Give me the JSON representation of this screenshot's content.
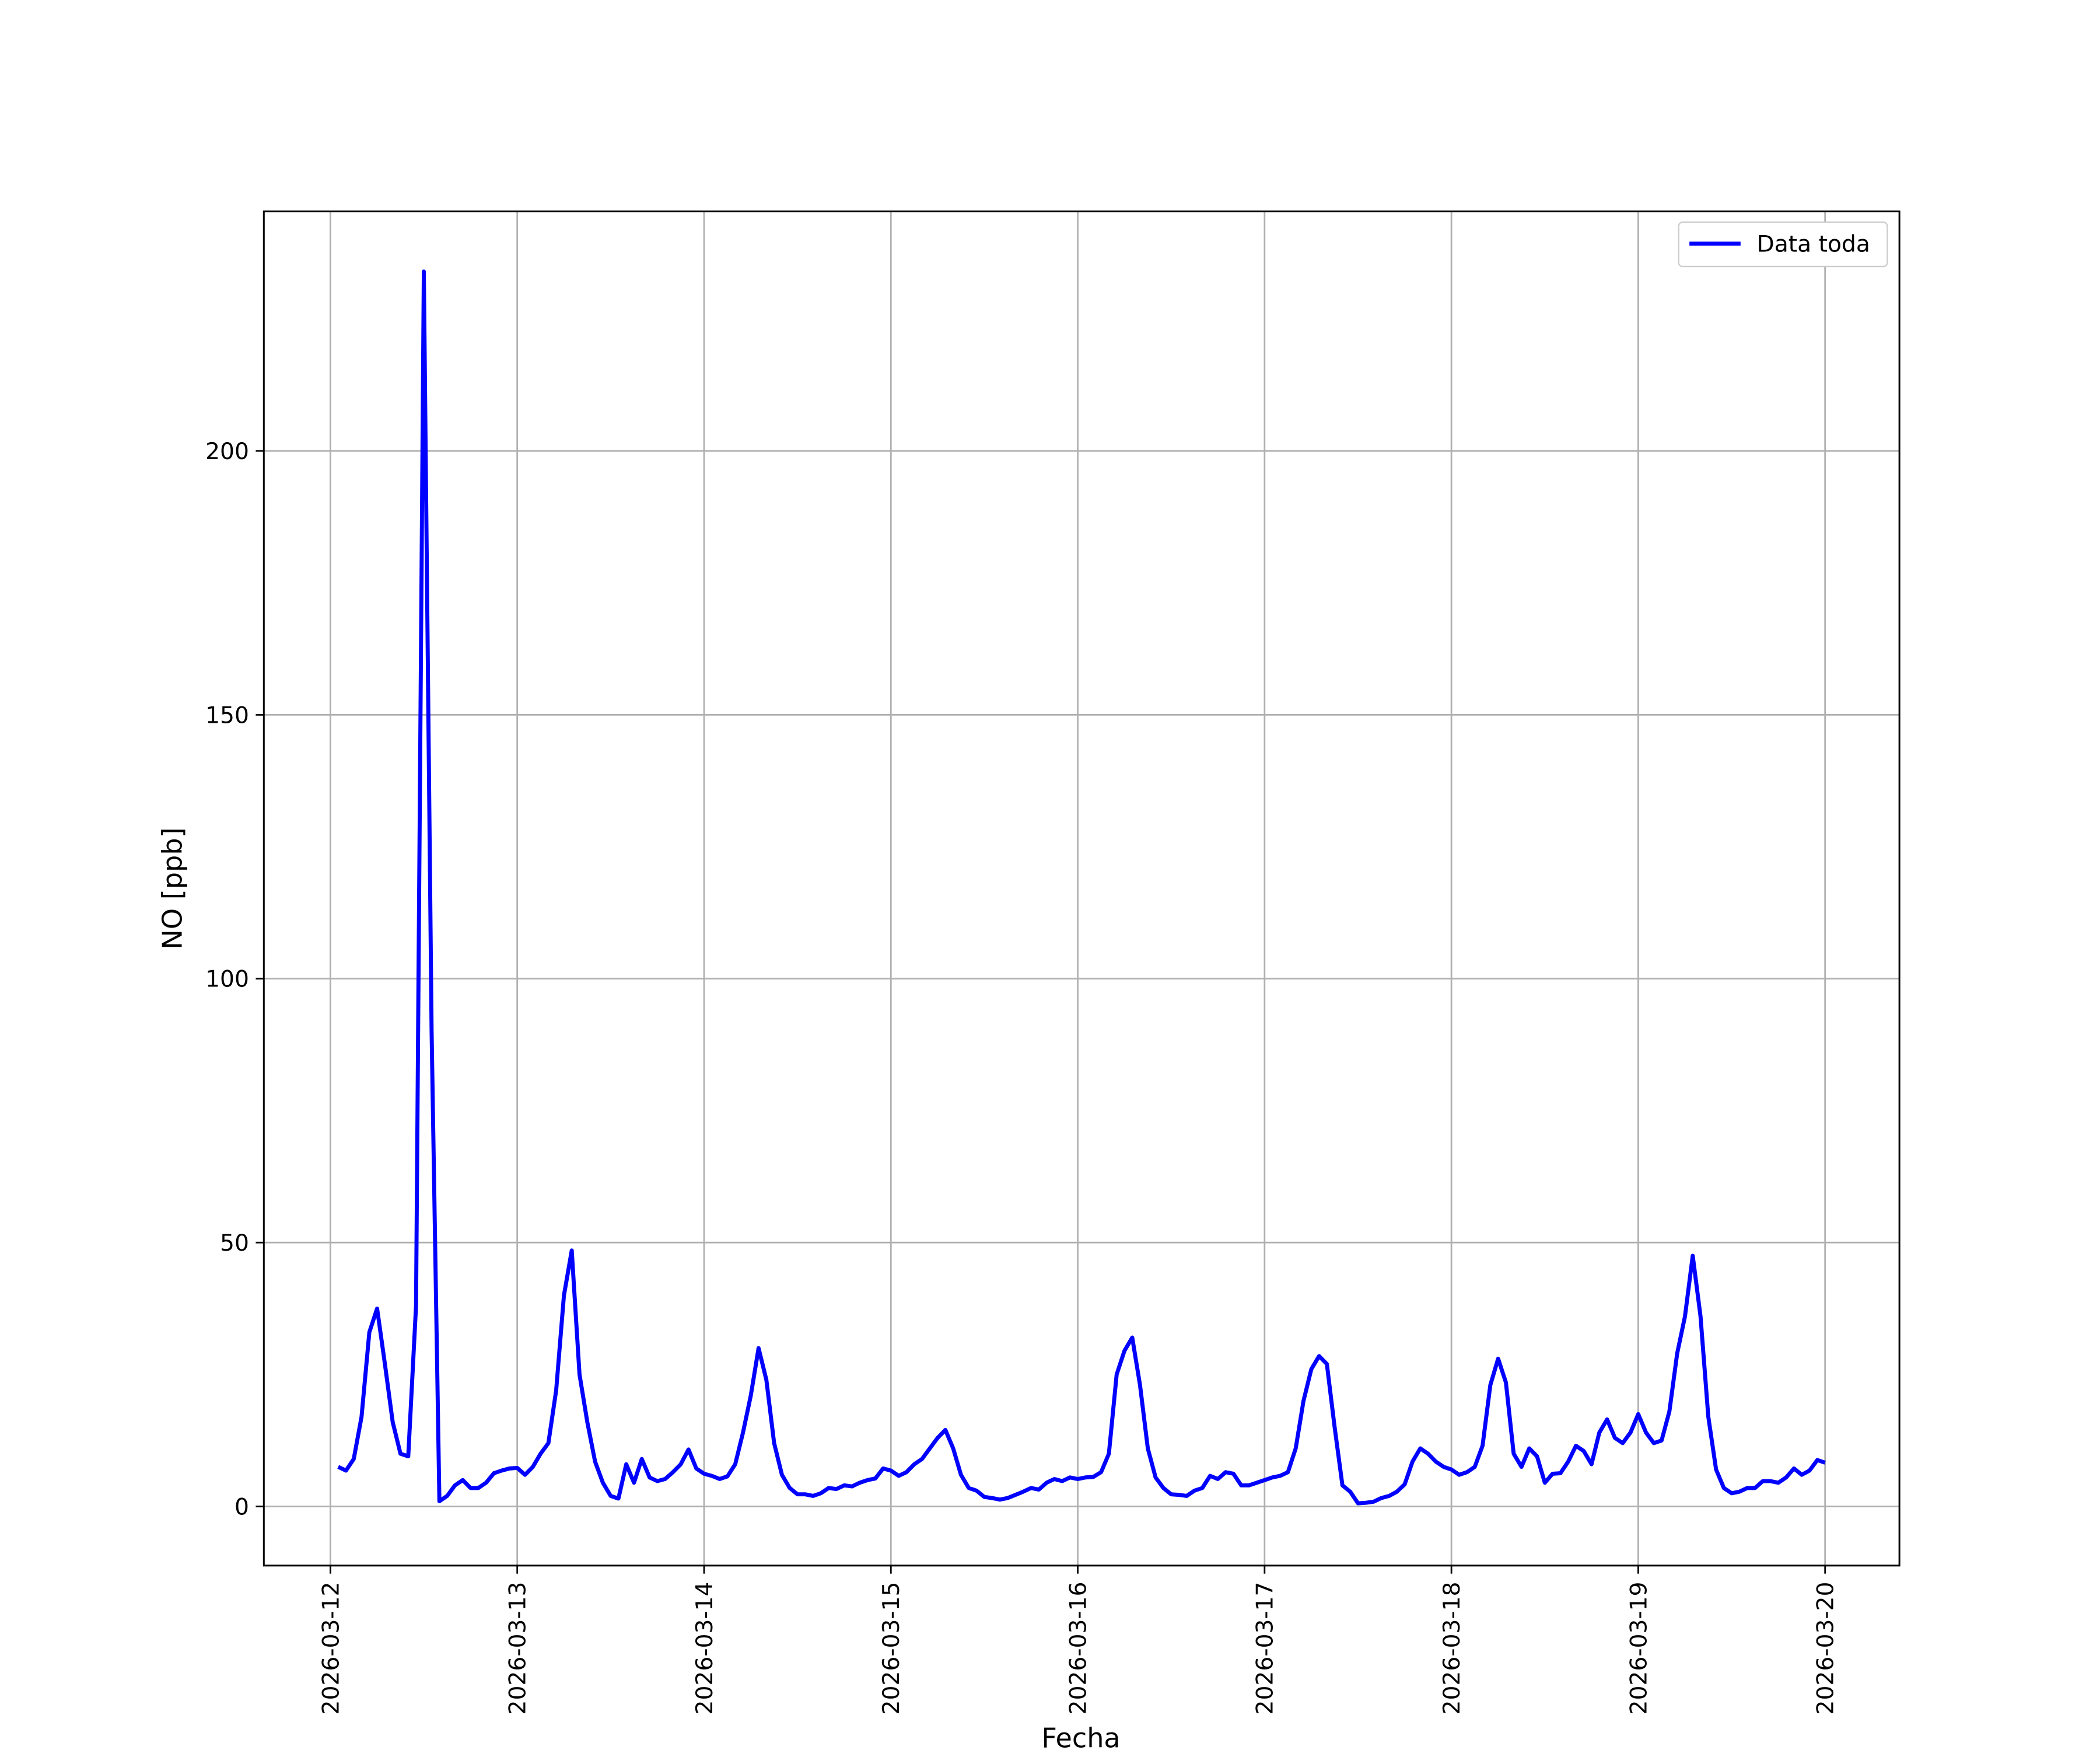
{
  "chart_data": {
    "type": "line",
    "xlabel": "Fecha",
    "ylabel": "NO [ppb]",
    "x": [
      "2026-03-12 01:00",
      "2026-03-12 02:00",
      "2026-03-12 03:00",
      "2026-03-12 04:00",
      "2026-03-12 05:00",
      "2026-03-12 06:00",
      "2026-03-12 07:00",
      "2026-03-12 08:00",
      "2026-03-12 09:00",
      "2026-03-12 10:00",
      "2026-03-12 11:00",
      "2026-03-12 12:00",
      "2026-03-12 13:00",
      "2026-03-12 14:00",
      "2026-03-12 15:00",
      "2026-03-12 16:00",
      "2026-03-12 17:00",
      "2026-03-12 18:00",
      "2026-03-12 19:00",
      "2026-03-12 20:00",
      "2026-03-12 21:00",
      "2026-03-12 22:00",
      "2026-03-12 23:00",
      "2026-03-13 00:00",
      "2026-03-13 01:00",
      "2026-03-13 02:00",
      "2026-03-13 03:00",
      "2026-03-13 04:00",
      "2026-03-13 05:00",
      "2026-03-13 06:00",
      "2026-03-13 07:00",
      "2026-03-13 08:00",
      "2026-03-13 09:00",
      "2026-03-13 10:00",
      "2026-03-13 11:00",
      "2026-03-13 12:00",
      "2026-03-13 13:00",
      "2026-03-13 14:00",
      "2026-03-13 15:00",
      "2026-03-13 16:00",
      "2026-03-13 17:00",
      "2026-03-13 18:00",
      "2026-03-13 19:00",
      "2026-03-13 20:00",
      "2026-03-13 21:00",
      "2026-03-13 22:00",
      "2026-03-13 23:00",
      "2026-03-14 00:00",
      "2026-03-14 01:00",
      "2026-03-14 02:00",
      "2026-03-14 03:00",
      "2026-03-14 04:00",
      "2026-03-14 05:00",
      "2026-03-14 06:00",
      "2026-03-14 07:00",
      "2026-03-14 08:00",
      "2026-03-14 09:00",
      "2026-03-14 10:00",
      "2026-03-14 11:00",
      "2026-03-14 12:00",
      "2026-03-14 13:00",
      "2026-03-14 14:00",
      "2026-03-14 15:00",
      "2026-03-14 16:00",
      "2026-03-14 17:00",
      "2026-03-14 18:00",
      "2026-03-14 19:00",
      "2026-03-14 20:00",
      "2026-03-14 21:00",
      "2026-03-14 22:00",
      "2026-03-14 23:00",
      "2026-03-15 00:00",
      "2026-03-15 01:00",
      "2026-03-15 02:00",
      "2026-03-15 03:00",
      "2026-03-15 04:00",
      "2026-03-15 05:00",
      "2026-03-15 06:00",
      "2026-03-15 07:00",
      "2026-03-15 08:00",
      "2026-03-15 09:00",
      "2026-03-15 10:00",
      "2026-03-15 11:00",
      "2026-03-15 12:00",
      "2026-03-15 13:00",
      "2026-03-15 14:00",
      "2026-03-15 15:00",
      "2026-03-15 16:00",
      "2026-03-15 17:00",
      "2026-03-15 18:00",
      "2026-03-15 19:00",
      "2026-03-15 20:00",
      "2026-03-15 21:00",
      "2026-03-15 22:00",
      "2026-03-15 23:00",
      "2026-03-16 00:00",
      "2026-03-16 01:00",
      "2026-03-16 02:00",
      "2026-03-16 03:00",
      "2026-03-16 04:00",
      "2026-03-16 05:00",
      "2026-03-16 06:00",
      "2026-03-16 07:00",
      "2026-03-16 08:00",
      "2026-03-16 09:00",
      "2026-03-16 10:00",
      "2026-03-16 11:00",
      "2026-03-16 12:00",
      "2026-03-16 13:00",
      "2026-03-16 14:00",
      "2026-03-16 15:00",
      "2026-03-16 16:00",
      "2026-03-16 17:00",
      "2026-03-16 18:00",
      "2026-03-16 19:00",
      "2026-03-16 20:00",
      "2026-03-16 21:00",
      "2026-03-16 22:00",
      "2026-03-16 23:00",
      "2026-03-17 00:00",
      "2026-03-17 01:00",
      "2026-03-17 02:00",
      "2026-03-17 03:00",
      "2026-03-17 04:00",
      "2026-03-17 05:00",
      "2026-03-17 06:00",
      "2026-03-17 07:00",
      "2026-03-17 08:00",
      "2026-03-17 09:00",
      "2026-03-17 10:00",
      "2026-03-17 11:00",
      "2026-03-17 12:00",
      "2026-03-17 13:00",
      "2026-03-17 14:00",
      "2026-03-17 15:00",
      "2026-03-17 16:00",
      "2026-03-17 17:00",
      "2026-03-17 18:00",
      "2026-03-17 19:00",
      "2026-03-17 20:00",
      "2026-03-17 21:00",
      "2026-03-17 22:00",
      "2026-03-17 23:00",
      "2026-03-18 00:00",
      "2026-03-18 01:00",
      "2026-03-18 02:00",
      "2026-03-18 03:00",
      "2026-03-18 04:00",
      "2026-03-18 05:00",
      "2026-03-18 06:00",
      "2026-03-18 07:00",
      "2026-03-18 08:00",
      "2026-03-18 09:00",
      "2026-03-18 10:00",
      "2026-03-18 11:00",
      "2026-03-18 12:00",
      "2026-03-18 13:00",
      "2026-03-18 14:00",
      "2026-03-18 15:00",
      "2026-03-18 16:00",
      "2026-03-18 17:00",
      "2026-03-18 18:00",
      "2026-03-18 19:00",
      "2026-03-18 20:00",
      "2026-03-18 21:00",
      "2026-03-18 22:00",
      "2026-03-18 23:00",
      "2026-03-19 00:00",
      "2026-03-19 01:00",
      "2026-03-19 02:00",
      "2026-03-19 03:00",
      "2026-03-19 04:00",
      "2026-03-19 05:00",
      "2026-03-19 06:00",
      "2026-03-19 07:00",
      "2026-03-19 08:00",
      "2026-03-19 09:00",
      "2026-03-19 10:00",
      "2026-03-19 11:00",
      "2026-03-19 12:00",
      "2026-03-19 13:00",
      "2026-03-19 14:00",
      "2026-03-19 15:00",
      "2026-03-19 16:00",
      "2026-03-19 17:00",
      "2026-03-19 18:00",
      "2026-03-19 19:00",
      "2026-03-19 20:00",
      "2026-03-19 21:00",
      "2026-03-19 22:00",
      "2026-03-19 23:00",
      "2026-03-20 00:00"
    ],
    "series": [
      {
        "name": "Data toda",
        "color": "#0000ff",
        "values": [
          7.5,
          6.8,
          9,
          17,
          33,
          37.5,
          27,
          16,
          10,
          9.5,
          38,
          234,
          90,
          1,
          2,
          4,
          5,
          3.5,
          3.5,
          4.5,
          6.3,
          6.8,
          7.2,
          7.3,
          6,
          7.5,
          10,
          12,
          22,
          40,
          48.5,
          25,
          16,
          8.5,
          4.5,
          2,
          1.5,
          8,
          4.5,
          9,
          5.5,
          4.8,
          5.2,
          6.5,
          8,
          10.8,
          7.2,
          6.2,
          5.8,
          5.2,
          5.7,
          8,
          14,
          21,
          30,
          24,
          12,
          6,
          3.5,
          2.3,
          2.3,
          2,
          2.5,
          3.5,
          3.3,
          4,
          3.8,
          4.5,
          5,
          5.3,
          7.2,
          6.8,
          5.8,
          6.5,
          8,
          9,
          11,
          13,
          14.5,
          11,
          6,
          3.5,
          3,
          1.8,
          1.6,
          1.3,
          1.6,
          2.2,
          2.8,
          3.5,
          3.2,
          4.5,
          5.2,
          4.8,
          5.5,
          5.2,
          5.5,
          5.6,
          6.5,
          10,
          25,
          29.5,
          32,
          23,
          11,
          5.5,
          3.5,
          2.3,
          2.2,
          2,
          3,
          3.5,
          5.8,
          5.2,
          6.5,
          6.2,
          4,
          4,
          4.5,
          5,
          5.5,
          5.8,
          6.5,
          11,
          20,
          26,
          28.5,
          27,
          15,
          4,
          2.8,
          0.6,
          0.7,
          0.9,
          1.6,
          2,
          2.8,
          4.2,
          8.5,
          11,
          10,
          8.5,
          7.5,
          7,
          6,
          6.5,
          7.5,
          11.5,
          23,
          28,
          23.5,
          10,
          7.5,
          11,
          9.5,
          4.5,
          6.2,
          6.3,
          8.5,
          11.5,
          10.5,
          8,
          14,
          16.5,
          13,
          12,
          14,
          17.5,
          14,
          12,
          12.5,
          18,
          29,
          36,
          47.5,
          36,
          17,
          7,
          3.5,
          2.5,
          2.8,
          3.5,
          3.5,
          4.8,
          4.8,
          4.5,
          5.5,
          7.2,
          6,
          6.8,
          8.8,
          8.3
        ]
      }
    ],
    "xlim": [
      "2026-03-11 15:27",
      "2026-03-20 09:33"
    ],
    "xticks": [
      "2026-03-12",
      "2026-03-13",
      "2026-03-14",
      "2026-03-15",
      "2026-03-16",
      "2026-03-17",
      "2026-03-18",
      "2026-03-19",
      "2026-03-20"
    ],
    "ylim": [
      -11.2,
      245.4
    ],
    "yticks": [
      0,
      50,
      100,
      150,
      200
    ],
    "grid": true,
    "legend": "upper right"
  }
}
